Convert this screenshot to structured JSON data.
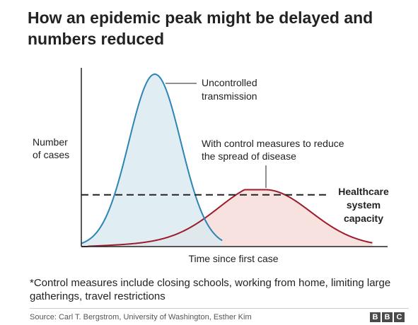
{
  "title_line1": "How an epidemic peak might be delayed and",
  "title_line2": "numbers reduced",
  "chart_data": {
    "type": "area",
    "ylabel_line1": "Number",
    "ylabel_line2": "of cases",
    "xlabel": "Time since first case",
    "x_range": [
      0,
      100
    ],
    "y_range": [
      0,
      100
    ],
    "grid": false,
    "series": [
      {
        "name_line1": "Uncontrolled",
        "name_line2": "transmission",
        "color": "#2c85b5",
        "fill": "#dbeaf0",
        "peak_x": 24,
        "peak_y": 100,
        "spread": 8.5
      },
      {
        "name_line1": "With control measures to reduce",
        "name_line2": "the spread of disease",
        "color": "#9e1b2b",
        "fill": "#f6dfdc",
        "peak_x": 60,
        "peak_y": 33,
        "spread_left": 15,
        "spread_right": 15
      }
    ],
    "threshold": {
      "label_line1": "Healthcare",
      "label_line2": "system",
      "label_line3": "capacity",
      "y": 30,
      "style": "dashed",
      "color": "#222222"
    }
  },
  "footnote_line1": "*Control measures include closing schools, working from home, limiting large",
  "footnote_line2": "gatherings, travel restrictions",
  "source": "Source: Carl T. Bergstrom, University of Washington, Esther Kim",
  "logo_letters": [
    "B",
    "B",
    "C"
  ]
}
